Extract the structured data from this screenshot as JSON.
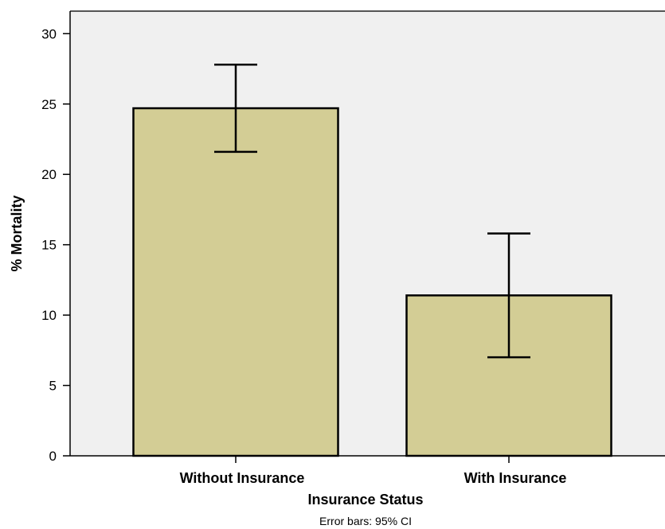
{
  "chart_data": {
    "type": "bar",
    "title": "",
    "xlabel": "Insurance Status",
    "ylabel": "% Mortality",
    "categories": [
      "Without Insurance",
      "With Insurance"
    ],
    "values": [
      24.7,
      11.4
    ],
    "error_bars": [
      {
        "low": 21.6,
        "high": 27.8
      },
      {
        "low": 7.0,
        "high": 15.8
      }
    ],
    "ylim": [
      0,
      30
    ],
    "yticks": [
      "0",
      "5",
      "10",
      "15",
      "20",
      "25",
      "30"
    ],
    "footnote": "Error bars: 95% CI",
    "grid": false,
    "legend": "none",
    "colors": {
      "bar_fill": "#d3cd95",
      "plot_background": "#f0f0f0",
      "bar_stroke": "#000000"
    }
  }
}
